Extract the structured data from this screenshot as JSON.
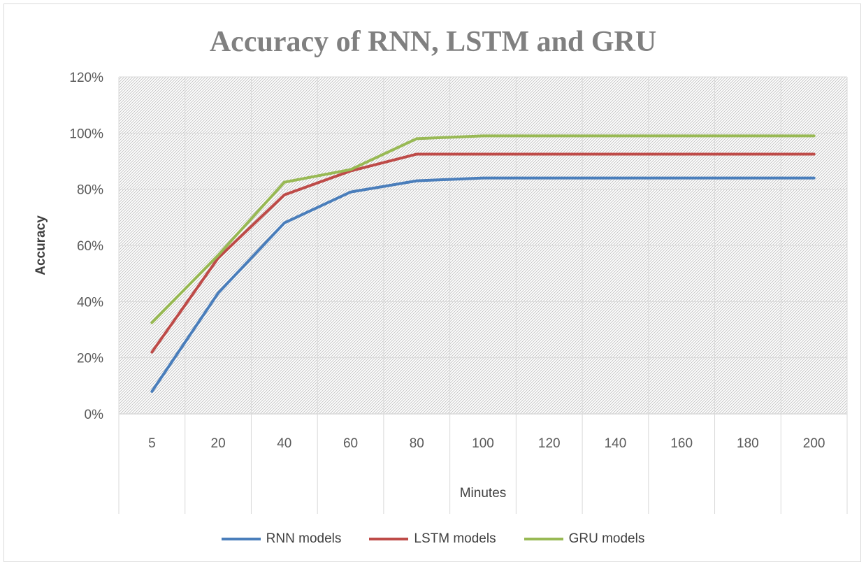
{
  "chart_data": {
    "type": "line",
    "title": "Accuracy of RNN, LSTM and GRU",
    "xlabel": "Minutes",
    "ylabel": "Accuracy",
    "categories": [
      "5",
      "20",
      "40",
      "60",
      "80",
      "100",
      "120",
      "140",
      "160",
      "180",
      "200"
    ],
    "ylim": [
      0,
      1.2
    ],
    "yticks": [
      "0%",
      "20%",
      "40%",
      "60%",
      "80%",
      "100%",
      "120%"
    ],
    "grid": true,
    "legend": "bottom",
    "series": [
      {
        "name": "RNN models",
        "color": "#4a7ebb",
        "values": [
          0.08,
          0.43,
          0.68,
          0.79,
          0.83,
          0.84,
          0.84,
          0.84,
          0.84,
          0.84,
          0.84
        ]
      },
      {
        "name": "LSTM models",
        "color": "#be4b48",
        "values": [
          0.22,
          0.555,
          0.78,
          0.865,
          0.925,
          0.925,
          0.925,
          0.925,
          0.925,
          0.925,
          0.925
        ]
      },
      {
        "name": "GRU models",
        "color": "#98b954",
        "values": [
          0.325,
          0.565,
          0.825,
          0.87,
          0.98,
          0.99,
          0.99,
          0.99,
          0.99,
          0.99,
          0.99
        ]
      }
    ]
  }
}
